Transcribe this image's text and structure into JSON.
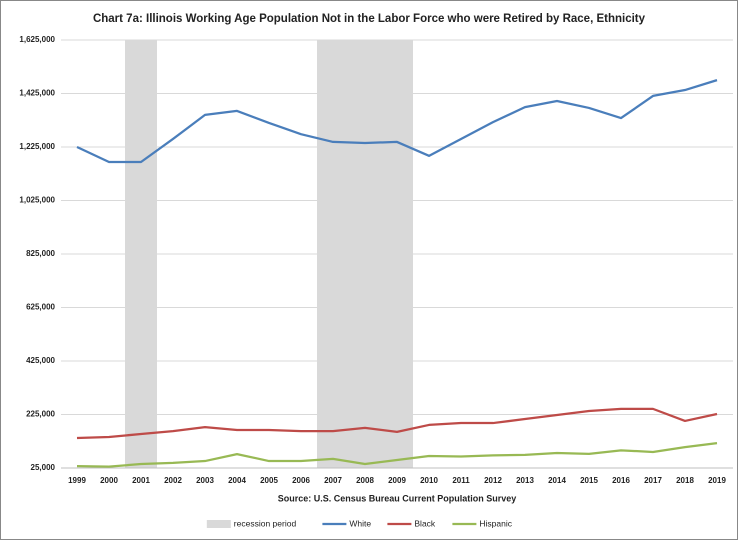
{
  "chart_data": {
    "type": "line",
    "title": "Chart 7a: Illinois Working Age Population Not in the Labor Force who were Retired by Race, Ethnicity",
    "x_label": "Source: U.S. Census Bureau Current Population Survey",
    "categories": [
      "1999",
      "2000",
      "2001",
      "2002",
      "2003",
      "2004",
      "2005",
      "2006",
      "2007",
      "2008",
      "2009",
      "2010",
      "2011",
      "2012",
      "2013",
      "2014",
      "2015",
      "2016",
      "2017",
      "2018",
      "2019"
    ],
    "ylim": [
      25000,
      1625000
    ],
    "yticks": [
      {
        "value": 25000,
        "label": "25,000"
      },
      {
        "value": 225000,
        "label": "225,000"
      },
      {
        "value": 425000,
        "label": "425,000"
      },
      {
        "value": 625000,
        "label": "625,000"
      },
      {
        "value": 825000,
        "label": "825,000"
      },
      {
        "value": 1025000,
        "label": "1,025,000"
      },
      {
        "value": 1225000,
        "label": "1,225,000"
      },
      {
        "value": 1425000,
        "label": "1,425,000"
      },
      {
        "value": 1625000,
        "label": "1,625,000"
      }
    ],
    "grid": true,
    "legend": "bottom",
    "series": [
      {
        "name": "recession period",
        "type": "bar",
        "color": "#d9d9d9",
        "values": [
          null,
          null,
          1625000,
          null,
          null,
          null,
          null,
          null,
          1625000,
          1625000,
          1625000,
          null,
          null,
          null,
          null,
          null,
          null,
          null,
          null,
          null,
          null
        ]
      },
      {
        "name": "White",
        "type": "line",
        "color": "#4a7ebb",
        "values": [
          1225000,
          1169000,
          1169000,
          1255000,
          1345000,
          1360000,
          1315000,
          1273000,
          1244000,
          1240000,
          1244000,
          1192000,
          1255000,
          1318000,
          1374000,
          1397000,
          1371000,
          1333000,
          1416000,
          1438000,
          1475000
        ]
      },
      {
        "name": "Black",
        "type": "line",
        "color": "#be4b48",
        "values": [
          137000,
          141000,
          152000,
          163000,
          178000,
          167000,
          167000,
          163000,
          163000,
          175000,
          160000,
          186000,
          193000,
          193000,
          208000,
          223000,
          238000,
          246000,
          246000,
          201000,
          227000
        ]
      },
      {
        "name": "Hispanic",
        "type": "line",
        "color": "#98b954",
        "values": [
          32000,
          30000,
          40000,
          44000,
          51000,
          77000,
          51000,
          51000,
          59000,
          40000,
          55000,
          70000,
          68000,
          72000,
          74000,
          81000,
          78000,
          91000,
          85000,
          103000,
          118000
        ]
      }
    ]
  }
}
